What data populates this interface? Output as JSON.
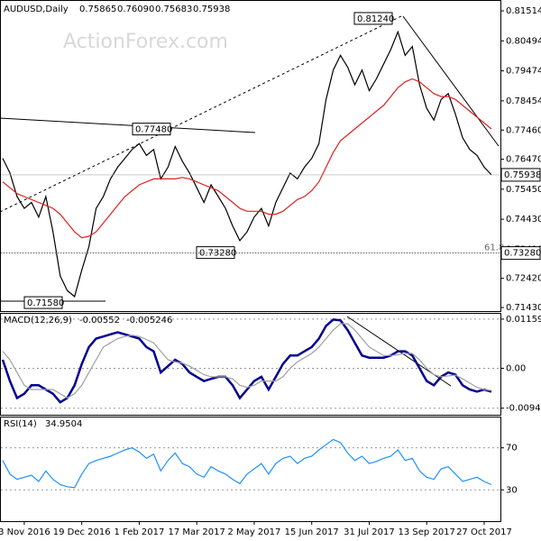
{
  "chart_data": [
    {
      "type": "line",
      "header": "AUDUSD,Daily",
      "ohlc": [
        0.75865,
        {
          "value": 0.7609,
          "label": "0.76090"
        },
        0.75683,
        0.75938
      ],
      "watermark": "ActionForex.com",
      "categories": [
        null,
        null,
        null,
        "3 Nov 2016",
        null,
        null,
        null,
        null,
        null,
        null,
        null,
        "19 Dec 2016",
        null,
        null,
        null,
        null,
        null,
        null,
        null,
        "1 Feb 2017",
        null,
        null,
        null,
        null,
        null,
        null,
        null,
        "17 Mar 2017",
        null,
        null,
        null,
        null,
        null,
        null,
        null,
        "2 May 2017",
        null,
        null,
        null,
        null,
        null,
        null,
        null,
        "15 Jun 2017",
        null,
        null,
        null,
        null,
        null,
        null,
        null,
        "31 Jul 2017",
        null,
        null,
        null,
        null,
        null,
        null,
        null,
        "13 Sep 2017",
        null,
        null,
        null,
        null,
        null,
        null,
        null,
        "27 Oct 2017",
        null
      ],
      "series": [
        {
          "name": "Close",
          "color": "#000000",
          "values": [
            0.765,
            0.76,
            0.752,
            0.748,
            0.75,
            0.745,
            0.752,
            0.74,
            0.725,
            0.72,
            0.718,
            0.727,
            0.735,
            0.748,
            0.752,
            0.758,
            0.762,
            0.765,
            0.768,
            0.77,
            0.766,
            0.768,
            0.758,
            0.762,
            0.769,
            0.764,
            0.76,
            0.755,
            0.75,
            0.756,
            0.752,
            0.748,
            0.742,
            0.737,
            0.74,
            0.745,
            0.748,
            0.742,
            0.75,
            0.755,
            0.76,
            0.758,
            0.762,
            0.765,
            0.77,
            0.785,
            0.795,
            0.8,
            0.796,
            0.79,
            0.795,
            0.788,
            0.792,
            0.797,
            0.802,
            0.808,
            0.8,
            0.803,
            0.79,
            0.782,
            0.778,
            0.785,
            0.787,
            0.78,
            0.772,
            0.768,
            0.766,
            0.762,
            0.75938
          ]
        },
        {
          "name": "MA",
          "color": "#e02020",
          "values": [
            0.757,
            0.755,
            0.753,
            0.752,
            0.751,
            0.75,
            0.749,
            0.748,
            0.746,
            0.743,
            0.74,
            0.738,
            0.7385,
            0.74,
            0.743,
            0.746,
            0.749,
            0.752,
            0.754,
            0.756,
            0.757,
            0.758,
            0.758,
            0.758,
            0.758,
            0.7585,
            0.758,
            0.757,
            0.756,
            0.755,
            0.754,
            0.752,
            0.75,
            0.748,
            0.747,
            0.747,
            0.747,
            0.746,
            0.746,
            0.747,
            0.749,
            0.751,
            0.752,
            0.754,
            0.757,
            0.762,
            0.767,
            0.771,
            0.773,
            0.775,
            0.777,
            0.779,
            0.781,
            0.783,
            0.786,
            0.789,
            0.791,
            0.792,
            0.791,
            0.789,
            0.787,
            0.786,
            0.786,
            0.785,
            0.783,
            0.781,
            0.779,
            0.777,
            0.775
          ]
        }
      ],
      "ylim": [
        0.71307,
        0.81852
      ],
      "yticks": [
        0.81514,
        0.80494,
        0.79474,
        0.78454,
        {
          "value": 0.7746,
          "label": "0.77460"
        },
        {
          "value": 0.7647,
          "label": "0.76470"
        },
        {
          "value": 0.7545,
          "label": "0.75450"
        },
        {
          "value": 0.7443,
          "label": "0.74430"
        },
        {
          "value": 0.7341,
          "label": "0.73410"
        },
        {
          "value": 0.7242,
          "label": "0.72420"
        },
        {
          "value": 0.7143,
          "label": "0.71430"
        }
      ],
      "annotations": [
        {
          "value": 0.8124,
          "label": "0.81240"
        },
        {
          "value": 0.7748,
          "label": "0.77480"
        },
        {
          "value": 0.7328,
          "label": "0.73280"
        },
        {
          "value": 0.7158,
          "label": "0.71580"
        }
      ],
      "fib_label": "61.8",
      "level": {
        "value": 0.7328,
        "label": "0.73280"
      },
      "last_price": 0.75938
    },
    {
      "type": "line",
      "title": "MACD(12,26,9)",
      "readings": [
        -0.00552,
        -0.005246
      ],
      "series": [
        {
          "name": "MACD",
          "color": "#000090",
          "values": [
            0.002,
            -0.003,
            -0.007,
            -0.006,
            -0.004,
            -0.004,
            -0.005,
            -0.006,
            -0.008,
            -0.007,
            -0.004,
            0.001,
            0.005,
            0.007,
            0.0075,
            0.008,
            0.0085,
            0.008,
            0.0075,
            0.007,
            0.005,
            0.004,
            -0.001,
            0.0005,
            0.002,
            0.001,
            -0.001,
            -0.002,
            -0.003,
            -0.0025,
            -0.002,
            -0.002,
            -0.004,
            -0.007,
            -0.005,
            -0.003,
            -0.002,
            -0.005,
            -0.002,
            0.001,
            0.003,
            0.003,
            0.004,
            0.005,
            0.007,
            0.01,
            0.0115,
            0.0113,
            0.009,
            0.006,
            0.003,
            0.0025,
            0.0025,
            0.0025,
            0.003,
            0.004,
            0.004,
            0.003,
            0.0,
            -0.003,
            -0.004,
            -0.002,
            -0.001,
            -0.0015,
            -0.004,
            -0.005,
            -0.0055,
            -0.005,
            -0.00552
          ]
        },
        {
          "name": "Signal",
          "color": "#a0a0a0",
          "values": [
            0.004,
            0.002,
            -0.001,
            -0.004,
            -0.005,
            -0.005,
            -0.005,
            -0.005,
            -0.006,
            -0.007,
            -0.006,
            -0.004,
            -0.001,
            0.002,
            0.005,
            0.006,
            0.007,
            0.0075,
            0.0078,
            0.0075,
            0.0068,
            0.006,
            0.004,
            0.002,
            0.0015,
            0.0012,
            0.0005,
            -0.0005,
            -0.0015,
            -0.002,
            -0.002,
            -0.002,
            -0.0025,
            -0.004,
            -0.0045,
            -0.004,
            -0.003,
            -0.003,
            -0.003,
            -0.002,
            0.0,
            0.0015,
            0.0025,
            0.0035,
            0.005,
            0.007,
            0.009,
            0.0105,
            0.0105,
            0.009,
            0.007,
            0.005,
            0.004,
            0.003,
            0.003,
            0.0032,
            0.0035,
            0.0035,
            0.002,
            0.0,
            -0.0015,
            -0.002,
            -0.0018,
            -0.0016,
            -0.0025,
            -0.0035,
            -0.0045,
            -0.005,
            -0.005246
          ]
        }
      ],
      "ylim": [
        -0.01096,
        0.01285
      ],
      "yticks": [
        0.01159,
        {
          "value": 0,
          "label": "0.00"
        },
        -0.009406
      ]
    },
    {
      "type": "line",
      "title": "RSI(14)",
      "readings": [
        34.9504
      ],
      "series": [
        {
          "name": "RSI",
          "color": "#1e90ff",
          "values": [
            58,
            45,
            40,
            42,
            44,
            38,
            48,
            40,
            35,
            33,
            32,
            45,
            55,
            58,
            60,
            62,
            65,
            68,
            70,
            66,
            60,
            64,
            48,
            58,
            65,
            55,
            52,
            45,
            42,
            52,
            48,
            45,
            40,
            36,
            45,
            50,
            55,
            45,
            55,
            60,
            62,
            55,
            60,
            62,
            68,
            73,
            78,
            75,
            65,
            58,
            62,
            55,
            57,
            60,
            62,
            68,
            58,
            60,
            48,
            42,
            40,
            50,
            52,
            45,
            38,
            40,
            42,
            38,
            34.9504
          ]
        }
      ],
      "ylim": [
        0.2,
        98.9
      ],
      "yticks": [
        70,
        30
      ]
    }
  ]
}
